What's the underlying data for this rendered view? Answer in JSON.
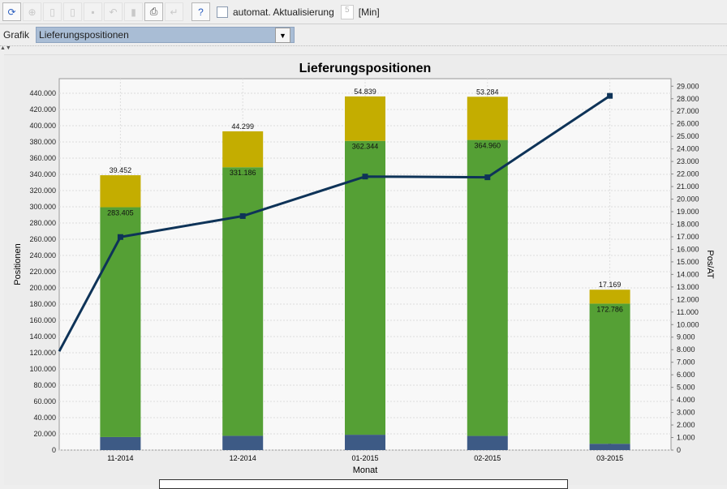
{
  "toolbar": {
    "buttons": [
      "refresh-icon",
      "zoom-icon",
      "new-icon",
      "copy-icon",
      "save-icon",
      "undo-icon",
      "delete-icon",
      "print-icon",
      "return-icon",
      "help-icon"
    ],
    "auto_refresh_label": "automat. Aktualisierung",
    "auto_refresh_checked": false,
    "interval_value": "5",
    "interval_unit": "[Min]"
  },
  "selector": {
    "label": "Grafik",
    "value": "Lieferungspositionen"
  },
  "colors": {
    "blue": "#3d5a85",
    "green": "#55a035",
    "yellow": "#c4ad00",
    "line": "#0e3358"
  },
  "chart_data": {
    "type": "bar",
    "title": "Lieferungspositionen",
    "xlabel": "Monat",
    "ylabel": "Positionen",
    "y2label": "Pos/AT",
    "categories": [
      "11-2014",
      "12-2014",
      "01-2015",
      "02-2015",
      "03-2015"
    ],
    "ylim": [
      0,
      458000
    ],
    "y2lim": [
      0,
      29600
    ],
    "yticks": [
      "0",
      "20.000",
      "40.000",
      "60.000",
      "80.000",
      "100.000",
      "120.000",
      "140.000",
      "160.000",
      "180.000",
      "200.000",
      "220.000",
      "240.000",
      "260.000",
      "280.000",
      "300.000",
      "320.000",
      "340.000",
      "360.000",
      "380.000",
      "400.000",
      "420.000",
      "440.000"
    ],
    "y2ticks": [
      "0",
      "1.000",
      "2.000",
      "3.000",
      "4.000",
      "5.000",
      "6.000",
      "7.000",
      "8.000",
      "9.000",
      "10.000",
      "11.000",
      "12.000",
      "13.000",
      "14.000",
      "15.000",
      "16.000",
      "17.000",
      "18.000",
      "19.000",
      "20.000",
      "21.000",
      "22.000",
      "23.000",
      "24.000",
      "25.000",
      "26.000",
      "27.000",
      "28.000",
      "29.000"
    ],
    "grid": true,
    "series": [
      {
        "values": [
          0,
          0,
          0,
          0,
          0
        ],
        "labels": [
          "0",
          "0",
          "0",
          "0",
          "0"
        ]
      },
      {
        "values": [
          16061,
          17588,
          18915,
          17445,
          7814
        ],
        "labels": [
          "16.061",
          "17.588",
          "18.915",
          "17.445",
          "7.814"
        ]
      },
      {
        "values": [
          283405,
          331186,
          362344,
          364960,
          172786
        ],
        "labels": [
          "283.405",
          "331.186",
          "362.344",
          "364.960",
          "172.786"
        ]
      },
      {
        "values": [
          39452,
          44299,
          54839,
          53284,
          17169
        ],
        "labels": [
          "39.452",
          "44.299",
          "54.839",
          "53.284",
          "17.169"
        ]
      }
    ],
    "line": {
      "axis": "right",
      "start_value": 7870,
      "values": [
        16980,
        18650,
        21800,
        21740,
        28230
      ]
    }
  }
}
